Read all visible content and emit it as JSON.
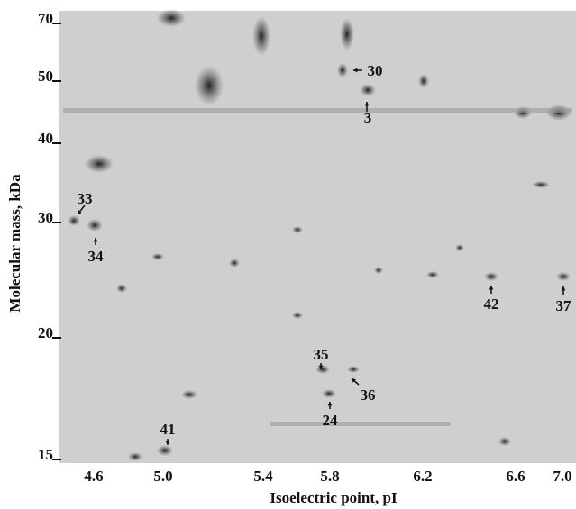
{
  "y_axis": {
    "label": "Molecular mass, kDa",
    "ticks": [
      "70",
      "50",
      "40",
      "30",
      "20",
      "15"
    ]
  },
  "x_axis": {
    "label": "Isoelectric point, pI",
    "ticks": [
      "4.6",
      "5.0",
      "5.4",
      "5.8",
      "6.2",
      "6.6",
      "7.0"
    ]
  },
  "spot_labels": [
    "30",
    "3",
    "33",
    "34",
    "42",
    "37",
    "35",
    "36",
    "24",
    "41"
  ]
}
